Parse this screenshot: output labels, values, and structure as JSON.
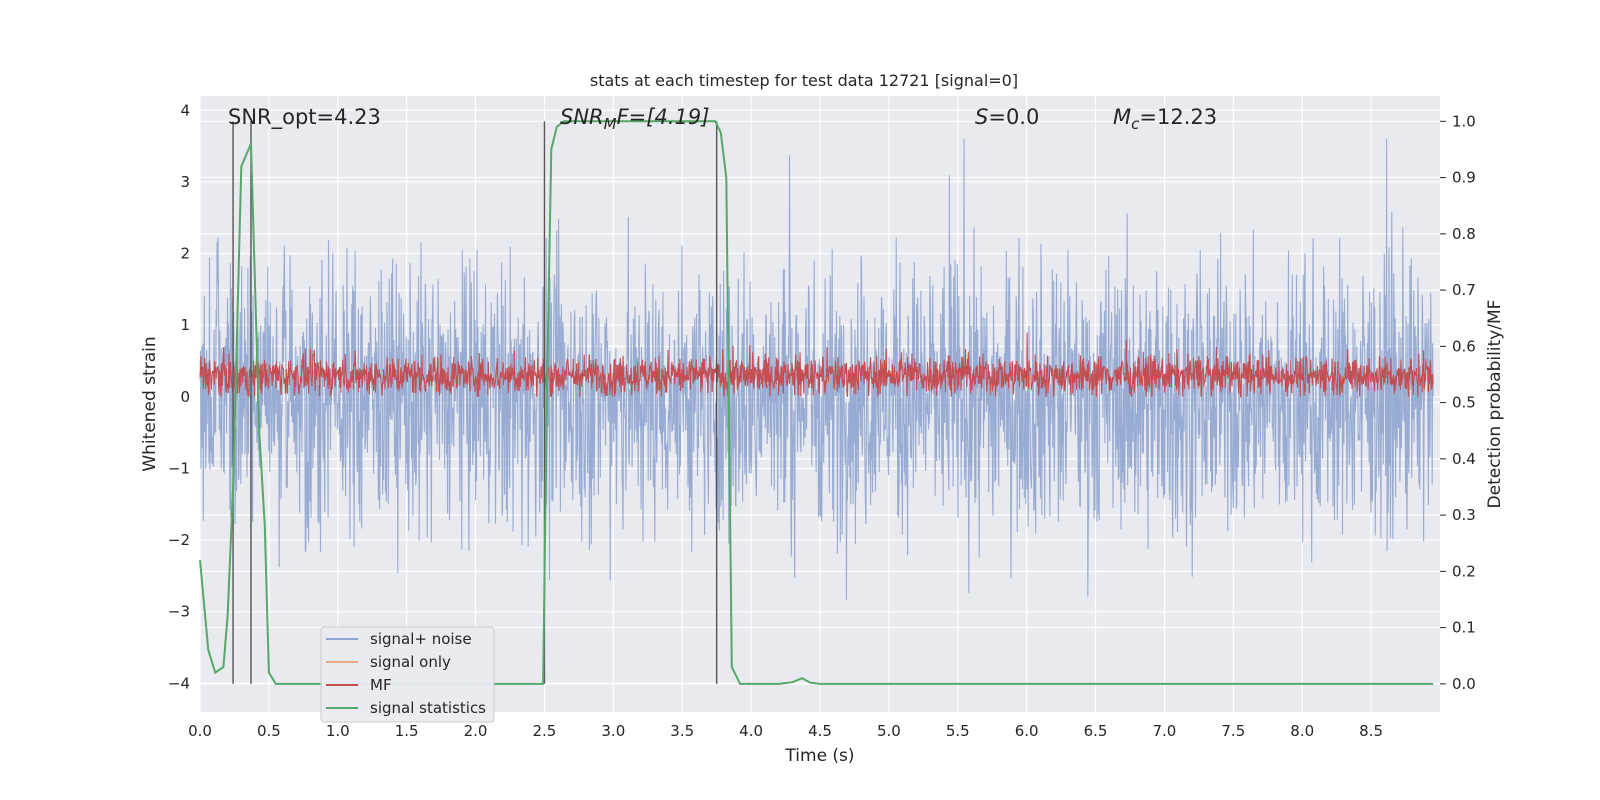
{
  "chart_data": {
    "type": "line",
    "title": "stats at each timestep for test data 12721 [signal=0]",
    "xlabel": "Time (s)",
    "ylabel": "Whitened strain",
    "ylabel_right": "Detection probability/MF",
    "xlim": [
      0.0,
      9.0
    ],
    "ylim": [
      -4.4,
      4.2
    ],
    "ylim_right": [
      -0.05,
      1.045
    ],
    "x_ticks": [
      "0.0",
      "0.5",
      "1.0",
      "1.5",
      "2.0",
      "2.5",
      "3.0",
      "3.5",
      "4.0",
      "4.5",
      "5.0",
      "5.5",
      "6.0",
      "6.5",
      "7.0",
      "7.5",
      "8.0",
      "8.5"
    ],
    "y_ticks": [
      "−4",
      "−3",
      "−2",
      "−1",
      "0",
      "1",
      "2",
      "3",
      "4"
    ],
    "y_ticks_right": [
      "0.0",
      "0.1",
      "0.2",
      "0.3",
      "0.4",
      "0.5",
      "0.6",
      "0.7",
      "0.8",
      "0.9",
      "1.0"
    ],
    "grid": true,
    "legend_position": "lower-left",
    "annotations": {
      "snr_opt": "SNR_opt=4.23",
      "snr_mf_main": "SNR",
      "snr_mf_sub": "M",
      "snr_mf_rest": "F=[4.19]",
      "s_main": "S",
      "s_rest": "=0.0",
      "mc_main": "M",
      "mc_sub": "c",
      "mc_rest": "=12.23"
    },
    "vertical_markers_s": [
      0.24,
      0.37,
      2.5,
      3.75
    ],
    "series": [
      {
        "name": "signal+ noise",
        "color": "#8fa5cf",
        "axis": "left",
        "style": "dense noise, typical amplitude about ±1.5, peaks to about ±3.5"
      },
      {
        "name": "signal only",
        "color": "#e8a98a",
        "axis": "left",
        "style": "not visible"
      },
      {
        "name": "MF",
        "color": "#c44e52",
        "axis": "left",
        "style": "dense band between about 0.0 and 0.6, peaks near 1.0"
      },
      {
        "name": "signal statistics",
        "color": "#55a868",
        "axis": "right",
        "x": [
          0.0,
          0.06,
          0.11,
          0.17,
          0.2,
          0.24,
          0.3,
          0.37,
          0.43,
          0.47,
          0.5,
          0.55,
          1.0,
          1.5,
          2.0,
          2.49,
          2.52,
          2.55,
          2.59,
          2.64,
          3.0,
          3.5,
          3.74,
          3.78,
          3.82,
          3.86,
          3.92,
          4.2,
          4.3,
          4.37,
          4.43,
          4.5,
          5.0,
          6.0,
          7.0,
          8.0,
          8.95
        ],
        "values": [
          0.22,
          0.06,
          0.02,
          0.03,
          0.12,
          0.35,
          0.92,
          0.96,
          0.45,
          0.28,
          0.02,
          0.0,
          0.0,
          0.0,
          0.0,
          0.0,
          0.55,
          0.95,
          0.99,
          1.0,
          1.0,
          1.0,
          1.0,
          0.98,
          0.9,
          0.03,
          0.0,
          0.0,
          0.003,
          0.01,
          0.002,
          0.0,
          0.0,
          0.0,
          0.0,
          0.0,
          0.0
        ]
      }
    ]
  }
}
